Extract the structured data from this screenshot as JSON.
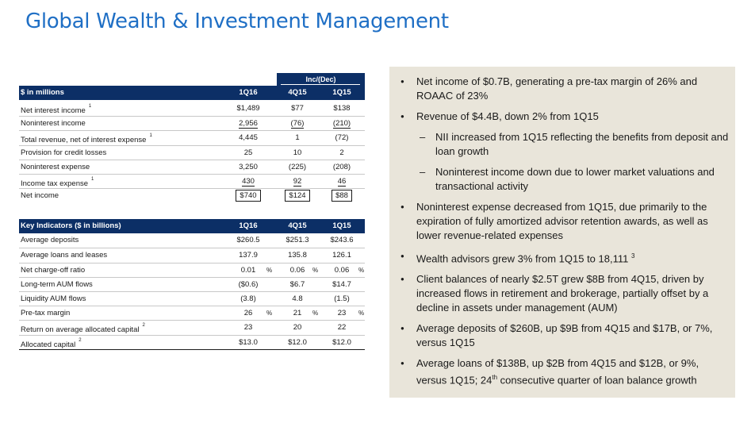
{
  "title": "Global Wealth & Investment Management",
  "table1": {
    "inc_dec_label": "Inc/(Dec)",
    "header": {
      "label": "$ in millions",
      "cols": [
        "1Q16",
        "4Q15",
        "1Q15"
      ]
    },
    "rows": [
      {
        "label": "Net interest income",
        "note": "1",
        "values": [
          "$1,489",
          "$77",
          "$138"
        ]
      },
      {
        "label": "Noninterest income",
        "note": "",
        "values": [
          "2,956",
          "(76)",
          "(210)"
        ]
      },
      {
        "label": "Total revenue, net of interest expense",
        "note": "1",
        "values": [
          "4,445",
          "1",
          "(72)"
        ]
      },
      {
        "label": "Provision for credit losses",
        "note": "",
        "values": [
          "25",
          "10",
          "2"
        ]
      },
      {
        "label": "Noninterest expense",
        "note": "",
        "values": [
          "3,250",
          "(225)",
          "(208)"
        ]
      },
      {
        "label": "Income tax expense",
        "note": "1",
        "values": [
          "430",
          "92",
          "46"
        ]
      },
      {
        "label": "Net income",
        "note": "",
        "values": [
          "$740",
          "$124",
          "$88"
        ]
      }
    ]
  },
  "table2": {
    "header": {
      "label": "Key Indicators ($ in billions)",
      "cols": [
        "1Q16",
        "4Q15",
        "1Q15"
      ]
    },
    "percent_sign": "%",
    "rows": [
      {
        "label": "Average deposits",
        "note": "",
        "values": [
          "$260.5",
          "$251.3",
          "$243.6"
        ]
      },
      {
        "label": "Average loans and leases",
        "note": "",
        "values": [
          "137.9",
          "135.8",
          "126.1"
        ]
      },
      {
        "label": "Net charge-off ratio",
        "note": "",
        "values": [
          "0.01",
          "0.06",
          "0.06"
        ]
      },
      {
        "label": "Long-term AUM flows",
        "note": "",
        "values": [
          "($0.6)",
          "$6.7",
          "$14.7"
        ]
      },
      {
        "label": "Liquidity AUM flows",
        "note": "",
        "values": [
          "(3.8)",
          "4.8",
          "(1.5)"
        ]
      },
      {
        "label": "Pre-tax margin",
        "note": "",
        "values": [
          "26",
          "21",
          "23"
        ]
      },
      {
        "label": "Return on average allocated capital",
        "note": "2",
        "values": [
          "23",
          "20",
          "22"
        ]
      },
      {
        "label": "Allocated capital",
        "note": "2",
        "values": [
          "$13.0",
          "$12.0",
          "$12.0"
        ]
      }
    ]
  },
  "bullets": {
    "b1": "Net income of $0.7B, generating a pre-tax margin of 26% and ROAAC of 23%",
    "b2": "Revenue of $4.4B, down 2% from 1Q15",
    "b2a": "NII increased from 1Q15 reflecting the benefits from deposit and loan growth",
    "b2b": "Noninterest income down due to lower market valuations and transactional activity",
    "b3": "Noninterest expense decreased from 1Q15, due primarily to the expiration of fully amortized advisor retention awards, as well as lower revenue-related expenses",
    "b4": "Wealth advisors grew 3% from 1Q15 to 18,111",
    "b4_note": "3",
    "b5": "Client balances of nearly $2.5T grew $8B from 4Q15, driven by increased flows in retirement and brokerage, partially offset by a decline in assets under management (AUM)",
    "b6": "Average deposits of $260B, up $9B from 4Q15 and $17B, or 7%, versus 1Q15",
    "b7_a": "Average loans of $138B, up $2B from 4Q15 and $12B, or 9%, versus 1Q15; 24",
    "b7_sup": "th",
    "b7_b": " consecutive quarter of loan balance growth"
  }
}
